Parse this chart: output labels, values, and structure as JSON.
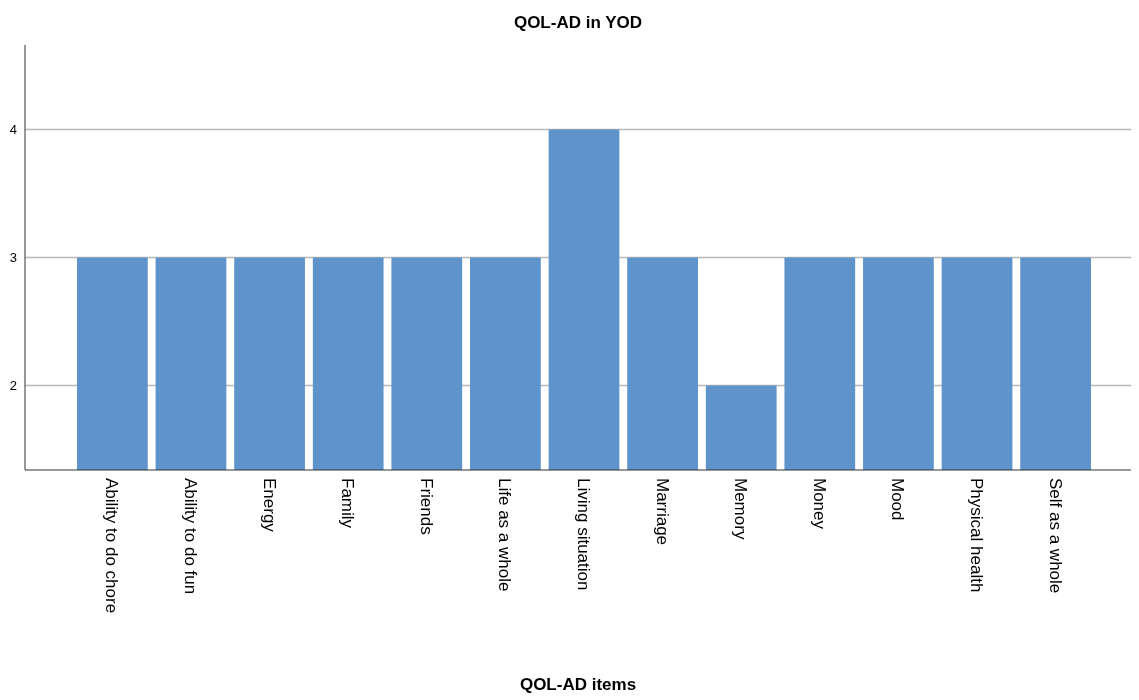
{
  "chart_data": {
    "type": "bar",
    "title": "QOL-AD in YOD",
    "xlabel": "QOL-AD items",
    "categories": [
      "Ability to do chore",
      "Ability to do fun",
      "Energy",
      "Family",
      "Friends",
      "Life as a whole",
      "Living situation",
      "Marriage",
      "Memory",
      "Money",
      "Mood",
      "Physical health",
      "Self as a whole"
    ],
    "values": [
      3,
      3,
      3,
      3,
      3,
      3,
      4,
      3,
      2,
      3,
      3,
      3,
      3
    ],
    "color": "#5f93cc",
    "ylim": [
      1.34,
      4.66
    ],
    "yticks": [
      2,
      3,
      4
    ],
    "grid": "y"
  }
}
